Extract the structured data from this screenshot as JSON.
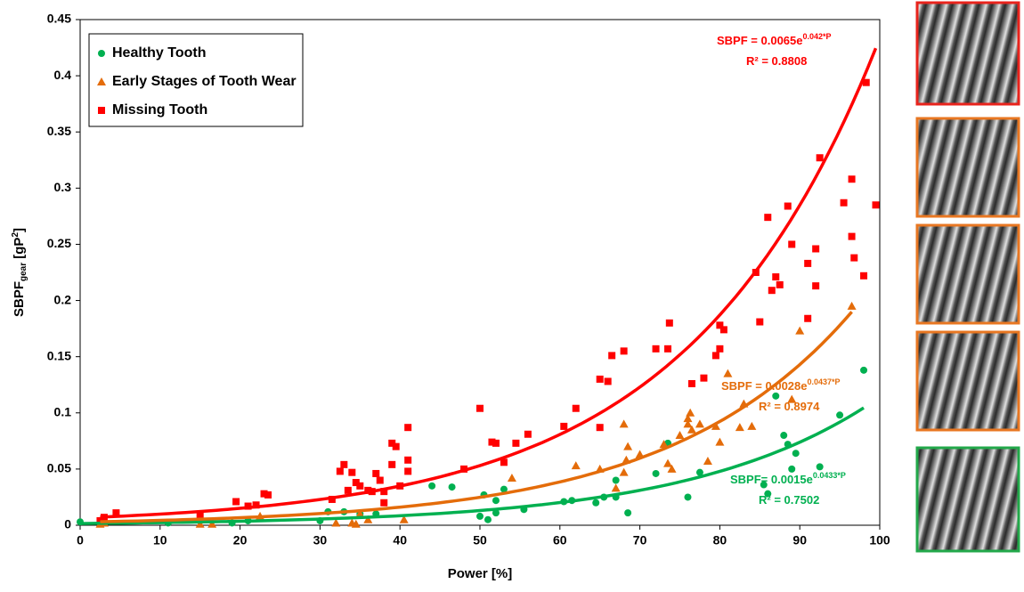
{
  "chart_data": {
    "type": "scatter",
    "x_label": "Power [%]",
    "y_label": {
      "main": "SBPF",
      "sub": "gear",
      "unit": " [gP",
      "sup": "2",
      "end": "]"
    },
    "xlim": [
      0,
      100
    ],
    "xticks": [
      0,
      10,
      20,
      30,
      40,
      50,
      60,
      70,
      80,
      90,
      100
    ],
    "ylim": [
      0,
      0.45
    ],
    "yticks": [
      0,
      0.05,
      0.1,
      0.15,
      0.2,
      0.25,
      0.3,
      0.35,
      0.4,
      0.45
    ],
    "legend": "upper left",
    "series": [
      {
        "name": "Healthy Tooth",
        "color": "#00b050",
        "marker": "circle",
        "x": [
          0,
          11,
          19,
          21,
          30,
          31,
          33,
          35,
          37,
          44,
          46.5,
          50,
          50.5,
          51,
          52,
          52,
          53,
          55.5,
          60.5,
          61.5,
          64.5,
          65.5,
          67,
          67,
          68.5,
          72,
          73.5,
          76,
          77.5,
          85.5,
          86,
          87,
          88,
          88.5,
          89,
          89.5,
          92.5,
          95,
          98
        ],
        "values": [
          0.003,
          0.002,
          0.002,
          0.004,
          0.004,
          0.012,
          0.012,
          0.01,
          0.01,
          0.035,
          0.034,
          0.008,
          0.027,
          0.005,
          0.022,
          0.011,
          0.032,
          0.014,
          0.021,
          0.022,
          0.02,
          0.025,
          0.025,
          0.04,
          0.011,
          0.046,
          0.073,
          0.025,
          0.047,
          0.036,
          0.028,
          0.115,
          0.08,
          0.072,
          0.05,
          0.064,
          0.052,
          0.098,
          0.138
        ],
        "fit": {
          "lhs": "SBPF= ",
          "a": 0.0015,
          "base": "e",
          "b": 0.0433,
          "var": "*P",
          "r2_label": "R² = ",
          "r2": 0.7502
        }
      },
      {
        "name": "Early Stages of Tooth Wear",
        "color": "#e46c0a",
        "marker": "triangle",
        "x": [
          2.5,
          3,
          15,
          16.5,
          22.5,
          32,
          34,
          35,
          36,
          40.5,
          34.5,
          54,
          62,
          65,
          67,
          68,
          68,
          68.3,
          68.5,
          70,
          73,
          73.5,
          74,
          75,
          76,
          76.3,
          76.5,
          76,
          77.5,
          78.5,
          79.5,
          80,
          81,
          82.5,
          83,
          84,
          89,
          90,
          96.5
        ],
        "values": [
          0.001,
          0.002,
          0.001,
          0.001,
          0.008,
          0.002,
          0.002,
          0.01,
          0.005,
          0.005,
          0.001,
          0.042,
          0.053,
          0.05,
          0.033,
          0.047,
          0.09,
          0.058,
          0.07,
          0.063,
          0.072,
          0.055,
          0.05,
          0.08,
          0.09,
          0.1,
          0.085,
          0.095,
          0.09,
          0.057,
          0.088,
          0.074,
          0.135,
          0.087,
          0.108,
          0.088,
          0.112,
          0.173,
          0.195
        ],
        "fit": {
          "lhs": "SBPF = ",
          "a": 0.0028,
          "base": "e",
          "b": 0.0437,
          "var": "*P",
          "r2_label": "R² = ",
          "r2": 0.8974
        }
      },
      {
        "name": "Missing Tooth",
        "color": "#ff0000",
        "marker": "square",
        "x": [
          2.5,
          3,
          4.5,
          15,
          19.5,
          21,
          22,
          23,
          23.5,
          31.5,
          32.5,
          33,
          33.5,
          34,
          34.5,
          35,
          36,
          36.5,
          37,
          37.5,
          38,
          38,
          39,
          39,
          39.5,
          40,
          41,
          41,
          41,
          48,
          50,
          51.5,
          52,
          53,
          54.5,
          56,
          60.5,
          62,
          65,
          65,
          66,
          66.5,
          68,
          72,
          73.5,
          73.7,
          76.5,
          78,
          79.5,
          80,
          80,
          80.5,
          84.5,
          85,
          86,
          86.5,
          87,
          87.5,
          88.5,
          89,
          91,
          91,
          92,
          92,
          92.5,
          95.5,
          96.5,
          96.5,
          96.8,
          98,
          98.3,
          99.5
        ],
        "values": [
          0.004,
          0.007,
          0.011,
          0.009,
          0.021,
          0.017,
          0.018,
          0.028,
          0.027,
          0.023,
          0.048,
          0.054,
          0.031,
          0.047,
          0.038,
          0.035,
          0.031,
          0.03,
          0.046,
          0.04,
          0.03,
          0.02,
          0.054,
          0.073,
          0.07,
          0.035,
          0.087,
          0.058,
          0.048,
          0.05,
          0.104,
          0.074,
          0.073,
          0.056,
          0.073,
          0.081,
          0.088,
          0.104,
          0.087,
          0.13,
          0.128,
          0.151,
          0.155,
          0.157,
          0.157,
          0.18,
          0.126,
          0.131,
          0.151,
          0.178,
          0.157,
          0.174,
          0.225,
          0.181,
          0.274,
          0.209,
          0.221,
          0.214,
          0.284,
          0.25,
          0.184,
          0.233,
          0.246,
          0.213,
          0.327,
          0.287,
          0.308,
          0.257,
          0.238,
          0.222,
          0.394,
          0.285
        ],
        "fit": {
          "lhs": "SBPF = ",
          "a": 0.0065,
          "base": "e",
          "b": 0.042,
          "var": "*P",
          "r2_label": "R² = ",
          "r2": 0.8808
        }
      }
    ]
  }
}
